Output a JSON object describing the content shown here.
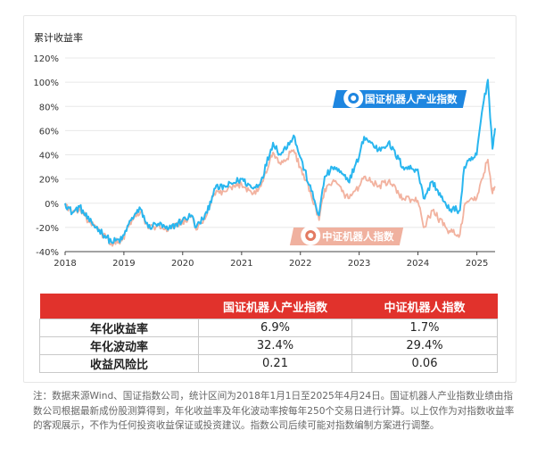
{
  "chart_data": {
    "type": "line",
    "ylabel": "累计收益率",
    "yticks": [
      "120%",
      "100%",
      "80%",
      "60%",
      "40%",
      "20%",
      "0%",
      "-20%",
      "-40%"
    ],
    "ylim": [
      -40,
      120
    ],
    "xticks": [
      "2018",
      "2019",
      "2020",
      "2021",
      "2022",
      "2023",
      "2024",
      "2025"
    ],
    "xlim": [
      "2018-01-01",
      "2025-04-24"
    ],
    "grid": "horizontal",
    "series": [
      {
        "name": "国证机器人产业指数",
        "color": "#29b6ef",
        "points": [
          [
            "2018-01-01",
            0
          ],
          [
            "2018-02-15",
            -8
          ],
          [
            "2018-04-01",
            -3
          ],
          [
            "2018-06-01",
            -15
          ],
          [
            "2018-08-01",
            -22
          ],
          [
            "2018-10-15",
            -32
          ],
          [
            "2018-12-20",
            -30
          ],
          [
            "2019-02-20",
            -12
          ],
          [
            "2019-04-15",
            -5
          ],
          [
            "2019-06-01",
            -20
          ],
          [
            "2019-08-01",
            -17
          ],
          [
            "2019-10-01",
            -22
          ],
          [
            "2019-12-31",
            -14
          ],
          [
            "2020-02-25",
            -10
          ],
          [
            "2020-03-25",
            -20
          ],
          [
            "2020-06-01",
            -8
          ],
          [
            "2020-07-15",
            12
          ],
          [
            "2020-10-01",
            14
          ],
          [
            "2020-12-31",
            20
          ],
          [
            "2021-03-15",
            12
          ],
          [
            "2021-05-01",
            18
          ],
          [
            "2021-07-15",
            50
          ],
          [
            "2021-09-01",
            40
          ],
          [
            "2021-11-20",
            56
          ],
          [
            "2021-12-31",
            38
          ],
          [
            "2022-03-10",
            10
          ],
          [
            "2022-04-27",
            -10
          ],
          [
            "2022-06-01",
            22
          ],
          [
            "2022-08-01",
            30
          ],
          [
            "2022-10-25",
            18
          ],
          [
            "2022-12-31",
            38
          ],
          [
            "2023-02-01",
            55
          ],
          [
            "2023-05-01",
            44
          ],
          [
            "2023-07-01",
            50
          ],
          [
            "2023-10-01",
            30
          ],
          [
            "2023-12-31",
            28
          ],
          [
            "2024-02-05",
            4
          ],
          [
            "2024-04-01",
            18
          ],
          [
            "2024-07-01",
            -4
          ],
          [
            "2024-09-18",
            -6
          ],
          [
            "2024-10-15",
            30
          ],
          [
            "2024-12-31",
            40
          ],
          [
            "2025-02-01",
            75
          ],
          [
            "2025-03-10",
            102
          ],
          [
            "2025-04-08",
            45
          ],
          [
            "2025-04-24",
            62
          ]
        ]
      },
      {
        "name": "中证机器人指数",
        "color": "#f2b29f",
        "points": [
          [
            "2018-01-01",
            0
          ],
          [
            "2018-02-15",
            -8
          ],
          [
            "2018-04-01",
            -4
          ],
          [
            "2018-06-01",
            -16
          ],
          [
            "2018-08-01",
            -23
          ],
          [
            "2018-10-15",
            -33
          ],
          [
            "2018-12-20",
            -31
          ],
          [
            "2019-02-20",
            -14
          ],
          [
            "2019-04-15",
            -7
          ],
          [
            "2019-06-01",
            -21
          ],
          [
            "2019-08-01",
            -18
          ],
          [
            "2019-10-01",
            -23
          ],
          [
            "2019-12-31",
            -15
          ],
          [
            "2020-02-25",
            -11
          ],
          [
            "2020-03-25",
            -22
          ],
          [
            "2020-06-01",
            -9
          ],
          [
            "2020-07-15",
            8
          ],
          [
            "2020-10-01",
            10
          ],
          [
            "2020-12-31",
            16
          ],
          [
            "2021-03-15",
            8
          ],
          [
            "2021-05-01",
            14
          ],
          [
            "2021-07-15",
            42
          ],
          [
            "2021-09-01",
            32
          ],
          [
            "2021-11-20",
            44
          ],
          [
            "2021-12-31",
            30
          ],
          [
            "2022-03-10",
            6
          ],
          [
            "2022-04-27",
            -14
          ],
          [
            "2022-06-01",
            12
          ],
          [
            "2022-08-01",
            18
          ],
          [
            "2022-10-25",
            4
          ],
          [
            "2022-12-31",
            14
          ],
          [
            "2023-02-01",
            22
          ],
          [
            "2023-05-01",
            14
          ],
          [
            "2023-07-01",
            18
          ],
          [
            "2023-10-01",
            4
          ],
          [
            "2023-12-31",
            2
          ],
          [
            "2024-02-05",
            -20
          ],
          [
            "2024-04-01",
            -6
          ],
          [
            "2024-07-01",
            -22
          ],
          [
            "2024-09-18",
            -26
          ],
          [
            "2024-10-15",
            -2
          ],
          [
            "2024-12-31",
            4
          ],
          [
            "2025-02-01",
            20
          ],
          [
            "2025-03-10",
            36
          ],
          [
            "2025-04-08",
            8
          ],
          [
            "2025-04-24",
            14
          ]
        ]
      }
    ]
  },
  "labels": {
    "guozheng": "国证机器人产业指数",
    "zhongzheng": "中证机器人指数"
  },
  "table": {
    "headers": [
      "",
      "国证机器人产业指数",
      "中证机器人指数"
    ],
    "rows": [
      [
        "年化收益率",
        "6.9%",
        "1.7%"
      ],
      [
        "年化波动率",
        "32.4%",
        "29.4%"
      ],
      [
        "收益风险比",
        "0.21",
        "0.06"
      ]
    ]
  },
  "note": "注：数据来源Wind、国证指数公司，统计区间为2018年1月1日至2025年4月24日。国证机器人产业指数业绩由指数公司根据最新成份股测算得到，年化收益率及年化波动率按每年250个交易日进行计算。以上仅作为对指数收益率的客观展示，不作为任何投资收益保证或投资建议。指数公司后续可能对指数编制方案进行调整。"
}
